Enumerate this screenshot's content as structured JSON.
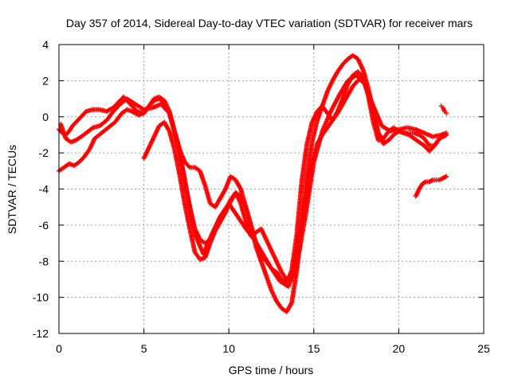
{
  "chart_data": {
    "type": "scatter",
    "title": "Day 357 of 2014, Sidereal Day-to-day VTEC variation (SDTVAR) for receiver mars",
    "xlabel": "GPS time / hours",
    "ylabel": "SDTVAR / TECUs",
    "xlim": [
      0,
      25
    ],
    "ylim": [
      -12,
      4
    ],
    "xticks": [
      "0",
      "5",
      "10",
      "15",
      "20",
      "25"
    ],
    "yticks": [
      "-12",
      "-10",
      "-8",
      "-6",
      "-4",
      "-2",
      "0",
      "2",
      "4"
    ],
    "grid": true,
    "marker": "plus",
    "color": "#ff0000",
    "series": [
      {
        "x": [
          0.0,
          0.2,
          0.4,
          0.6,
          0.8,
          1.0,
          1.3,
          1.6,
          2.0,
          2.4,
          2.8,
          3.2,
          3.5,
          3.8,
          4.0,
          4.3,
          4.6,
          5.0,
          5.3,
          5.6,
          5.9,
          6.2,
          6.5,
          6.8,
          7.1,
          7.4,
          7.7,
          8.0,
          8.3,
          8.6,
          8.9,
          9.2,
          9.5,
          9.8,
          10.1,
          10.4,
          10.7,
          11.0,
          11.3,
          11.6,
          11.9,
          12.2,
          12.5,
          12.8,
          13.1,
          13.4,
          13.7,
          14.0,
          14.3,
          14.6,
          14.9,
          15.2,
          15.5,
          15.8,
          16.1,
          16.4,
          16.7,
          17.0,
          17.3,
          17.6,
          17.9,
          18.2,
          18.5,
          18.8,
          19.1,
          19.4,
          19.7,
          20.0,
          20.3,
          20.6,
          20.9,
          21.2,
          21.5,
          21.8,
          22.1,
          22.4,
          22.8
        ],
        "y": [
          -0.7,
          -0.9,
          -1.0,
          -0.8,
          -0.5,
          -0.3,
          0.0,
          0.3,
          0.4,
          0.4,
          0.3,
          0.5,
          0.8,
          1.1,
          0.9,
          0.6,
          0.3,
          0.2,
          0.6,
          0.9,
          1.0,
          0.8,
          0.2,
          -0.8,
          -1.8,
          -2.5,
          -2.8,
          -2.8,
          -3.0,
          -3.8,
          -4.8,
          -5.0,
          -4.5,
          -4.0,
          -3.3,
          -3.5,
          -4.0,
          -5.0,
          -6.0,
          -7.0,
          -7.6,
          -8.0,
          -8.4,
          -8.6,
          -9.0,
          -9.2,
          -8.5,
          -6.5,
          -3.5,
          -1.5,
          -0.3,
          0.3,
          0.6,
          0.2,
          -0.2,
          0.3,
          1.0,
          1.8,
          2.3,
          2.5,
          2.2,
          1.2,
          -0.3,
          -1.3,
          -1.2,
          -0.8,
          -0.6,
          -0.8,
          -0.9,
          -0.9,
          -0.9,
          -1.0,
          -1.2,
          -1.6,
          -1.6,
          -1.2,
          -1.0
        ]
      },
      {
        "x": [
          0.0,
          0.3,
          0.6,
          0.9,
          1.2,
          1.5,
          1.8,
          2.1,
          2.5,
          2.9,
          3.3,
          3.7,
          4.0,
          4.3,
          4.7,
          5.0,
          5.3,
          5.6,
          5.9,
          6.2,
          6.5,
          6.8,
          7.1,
          7.4,
          7.7,
          8.0,
          8.3,
          8.6,
          8.9,
          9.2,
          9.5,
          9.8,
          10.1,
          10.4,
          10.7,
          11.0,
          11.3,
          11.6,
          11.9,
          12.2,
          12.5,
          12.8,
          13.1,
          13.4,
          13.7,
          14.0,
          14.3,
          14.6,
          14.9,
          15.2,
          15.5,
          15.8,
          16.1,
          16.4,
          16.7,
          17.0,
          17.3,
          17.6,
          17.9,
          18.2,
          18.5,
          18.8,
          19.1,
          19.4,
          19.7,
          20.0,
          20.3,
          20.6,
          20.9,
          21.2,
          21.5,
          21.8,
          22.1,
          22.4,
          22.8
        ],
        "y": [
          -3.0,
          -2.8,
          -2.6,
          -2.7,
          -2.5,
          -2.2,
          -1.8,
          -1.2,
          -0.9,
          -0.6,
          -0.3,
          0.2,
          0.4,
          0.3,
          0.1,
          0.2,
          0.6,
          1.0,
          1.1,
          0.9,
          0.3,
          -0.8,
          -2.0,
          -3.5,
          -5.0,
          -6.2,
          -6.8,
          -7.0,
          -6.8,
          -6.3,
          -5.8,
          -5.2,
          -4.6,
          -4.2,
          -4.4,
          -5.0,
          -6.0,
          -7.2,
          -8.0,
          -8.8,
          -9.6,
          -10.2,
          -10.6,
          -10.8,
          -10.3,
          -8.5,
          -5.8,
          -3.2,
          -1.4,
          -0.2,
          0.6,
          1.4,
          2.0,
          2.5,
          2.9,
          3.2,
          3.4,
          3.2,
          2.6,
          1.6,
          0.3,
          -0.9,
          -1.5,
          -1.3,
          -1.0,
          -0.8,
          -0.9,
          -1.0,
          -1.2,
          -1.4,
          -1.6,
          -1.9,
          -1.6,
          -1.2,
          -1.0
        ]
      },
      {
        "x": [
          0.1,
          0.4,
          0.7,
          1.0,
          1.3,
          1.6,
          2.0,
          2.4,
          2.8,
          3.2,
          3.6,
          4.0,
          4.5,
          5.0,
          5.5,
          6.0,
          6.5,
          7.0,
          7.5,
          8.0,
          8.5,
          9.0,
          9.5,
          10.0,
          10.5,
          11.0,
          11.5,
          12.0,
          12.5,
          13.0,
          13.5,
          14.0,
          14.5,
          15.0,
          15.5,
          16.0,
          16.5,
          17.0,
          17.5,
          18.0,
          18.5,
          19.0,
          19.5,
          20.0,
          20.5,
          21.0,
          21.5,
          22.0,
          22.5,
          22.8
        ],
        "y": [
          -0.4,
          -1.2,
          -1.4,
          -1.3,
          -1.1,
          -0.9,
          -0.6,
          -0.5,
          -0.2,
          0.3,
          0.7,
          1.0,
          0.7,
          0.4,
          0.5,
          0.7,
          0.2,
          -1.5,
          -4.0,
          -6.5,
          -7.6,
          -6.5,
          -5.5,
          -4.8,
          -5.5,
          -6.2,
          -6.8,
          -7.6,
          -8.4,
          -9.1,
          -9.4,
          -8.2,
          -5.5,
          -2.5,
          -0.8,
          0.3,
          1.2,
          2.0,
          2.3,
          1.8,
          0.6,
          -0.5,
          -0.8,
          -0.7,
          -0.6,
          -0.7,
          -0.9,
          -1.1,
          -1.0,
          -0.9
        ]
      },
      {
        "x": [
          5.0,
          5.3,
          5.6,
          5.9,
          6.2,
          6.5,
          6.8,
          7.1,
          7.4,
          7.7,
          8.0,
          8.3,
          8.6,
          8.9,
          9.2,
          9.5,
          9.8,
          10.1,
          10.4,
          10.7,
          11.0,
          11.3,
          11.6,
          11.9,
          12.2,
          12.5,
          12.8,
          13.1,
          13.4,
          13.7,
          14.0,
          14.3,
          14.6,
          14.9,
          15.2,
          15.5,
          15.8,
          16.1,
          16.4,
          16.7,
          17.0,
          17.3,
          17.6,
          17.9,
          18.2,
          18.5,
          18.8,
          19.1
        ],
        "y": [
          -2.3,
          -1.7,
          -1.1,
          -0.5,
          -0.3,
          -0.8,
          -1.8,
          -3.2,
          -4.8,
          -6.2,
          -7.5,
          -7.9,
          -7.8,
          -7.0,
          -6.3,
          -5.8,
          -5.3,
          -4.7,
          -4.2,
          -4.8,
          -5.8,
          -6.6,
          -6.4,
          -6.2,
          -6.8,
          -7.4,
          -8.0,
          -8.6,
          -9.0,
          -8.8,
          -7.6,
          -5.8,
          -4.0,
          -2.6,
          -1.5,
          -1.0,
          -0.6,
          -0.2,
          0.2,
          0.7,
          1.2,
          1.7,
          2.0,
          2.2,
          1.4,
          0.2,
          -0.9,
          -1.3
        ]
      },
      {
        "x": [
          21.0,
          21.2,
          21.4,
          21.6,
          21.8,
          22.0,
          22.2,
          22.4,
          22.6,
          22.8
        ],
        "y": [
          -4.4,
          -4.0,
          -3.7,
          -3.6,
          -3.6,
          -3.5,
          -3.5,
          -3.5,
          -3.4,
          -3.3
        ]
      },
      {
        "x": [
          22.5,
          22.6,
          22.7,
          22.8
        ],
        "y": [
          0.6,
          0.5,
          0.3,
          0.2
        ]
      }
    ]
  }
}
